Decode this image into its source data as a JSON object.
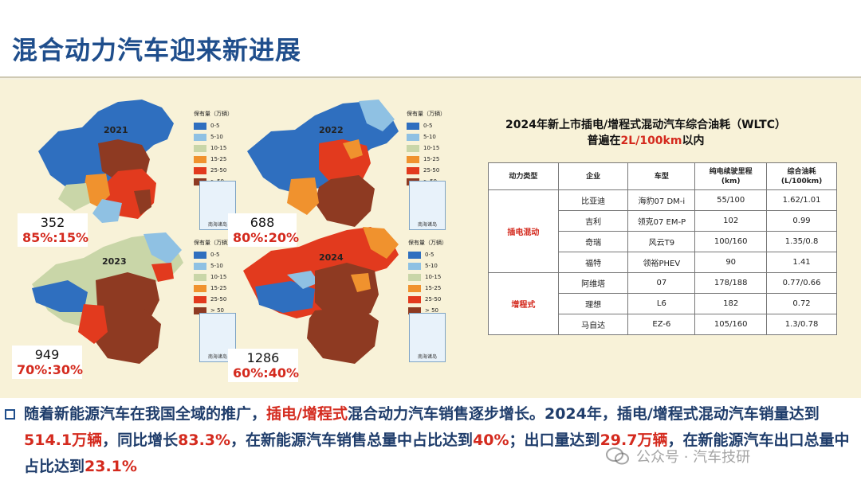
{
  "title": "混合动力汽车迎来新进展",
  "legend": {
    "title": "保有量（万辆）",
    "items": [
      {
        "label": "0-5",
        "color": "#2f6fbf"
      },
      {
        "label": "5-10",
        "color": "#8fc1e3"
      },
      {
        "label": "10-15",
        "color": "#c9d6a8"
      },
      {
        "label": "15-25",
        "color": "#f0922e"
      },
      {
        "label": "25-50",
        "color": "#e23a1e"
      },
      {
        "label": "> 50",
        "color": "#8e3a22"
      }
    ]
  },
  "inset_label": "南海诸岛",
  "maps": [
    {
      "year": "2021",
      "count": "352",
      "ratio": "85%:15%"
    },
    {
      "year": "2022",
      "count": "688",
      "ratio": "80%:20%"
    },
    {
      "year": "2023",
      "count": "949",
      "ratio": "70%:30%"
    },
    {
      "year": "2024",
      "count": "1286",
      "ratio": "60%:40%"
    }
  ],
  "table": {
    "title_line1": "2024年新上市插电/增程式混动汽车综合油耗（WLTC）",
    "title_line2_prefix": "普遍在",
    "title_line2_highlight": "2L/100km",
    "title_line2_suffix": "以内",
    "headers": [
      "动力类型",
      "企业",
      "车型",
      "纯电续驶里程\n(km)",
      "综合油耗\n(L/100km)"
    ],
    "groups": [
      {
        "name": "插电混动",
        "rows": [
          [
            "比亚迪",
            "海豹07 DM-i",
            "55/100",
            "1.62/1.01"
          ],
          [
            "吉利",
            "领克07 EM-P",
            "102",
            "0.99"
          ],
          [
            "奇瑞",
            "风云T9",
            "100/160",
            "1.35/0.8"
          ],
          [
            "福特",
            "领裕PHEV",
            "90",
            "1.41"
          ]
        ]
      },
      {
        "name": "增程式",
        "rows": [
          [
            "阿维塔",
            "07",
            "178/188",
            "0.77/0.66"
          ],
          [
            "理想",
            "L6",
            "182",
            "0.72"
          ],
          [
            "马自达",
            "EZ-6",
            "105/160",
            "1.3/0.78"
          ]
        ]
      }
    ]
  },
  "paragraph": {
    "p1": "随着新能源汽车在我国全域的推广，",
    "h1": "插电/增程式",
    "p2": "混合动力汽车销售逐步增长。2024年，插电/增程式混动汽车销量达到",
    "h2": "514.1万辆",
    "p3": "，同比增长",
    "h3": "83.3%",
    "p4": "，在新能源汽车销售总量中占比达到",
    "h4": "40%",
    "p5": "；出口量达到",
    "h5": "29.7万辆",
    "p6": "，在新能源汽车出口总量中占比达到",
    "h6": "23.1%"
  },
  "watermark": "公众号 · 汽车技研"
}
